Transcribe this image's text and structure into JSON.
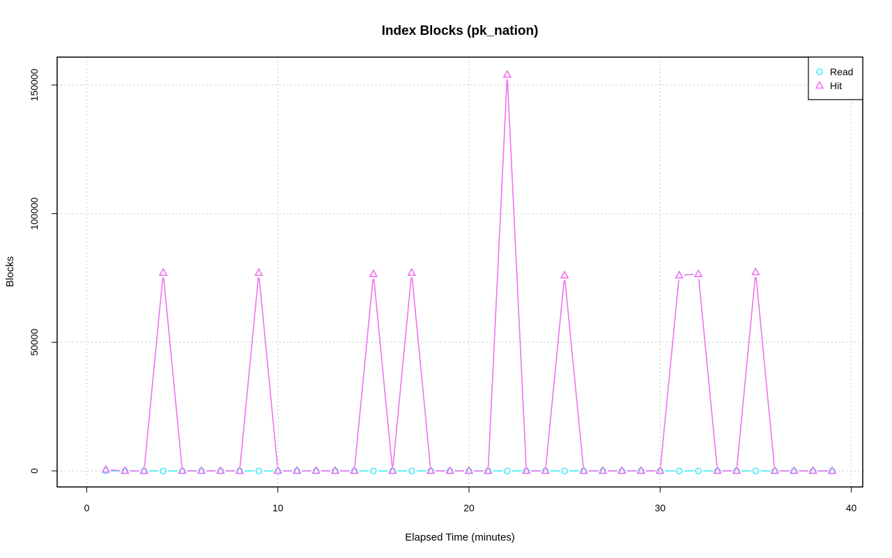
{
  "chart_data": {
    "type": "line",
    "title": "Index Blocks (pk_nation)",
    "xlabel": "Elapsed Time (minutes)",
    "ylabel": "Blocks",
    "xlim": [
      0,
      40
    ],
    "ylim": [
      0,
      155000
    ],
    "x_ticks": [
      0,
      10,
      20,
      30,
      40
    ],
    "y_ticks": [
      0,
      50000,
      100000,
      150000
    ],
    "grid": true,
    "legend_position": "top-right",
    "x": [
      1,
      2,
      3,
      4,
      5,
      6,
      7,
      8,
      9,
      10,
      11,
      12,
      13,
      14,
      15,
      16,
      17,
      18,
      19,
      20,
      21,
      22,
      23,
      24,
      25,
      26,
      27,
      28,
      29,
      30,
      31,
      32,
      33,
      34,
      35,
      36,
      37,
      38,
      39
    ],
    "series": [
      {
        "name": "Read",
        "color": "#40f0f0",
        "marker": "circle",
        "values": [
          0,
          0,
          0,
          0,
          0,
          0,
          0,
          0,
          0,
          0,
          0,
          0,
          0,
          0,
          0,
          0,
          0,
          0,
          0,
          0,
          0,
          0,
          0,
          0,
          0,
          0,
          0,
          0,
          0,
          0,
          0,
          0,
          0,
          0,
          0,
          0,
          0,
          0,
          0
        ]
      },
      {
        "name": "Hit",
        "color": "#f070f0",
        "marker": "triangle",
        "values": [
          500,
          0,
          0,
          77000,
          0,
          0,
          0,
          0,
          77000,
          0,
          0,
          0,
          0,
          0,
          76500,
          0,
          77000,
          0,
          0,
          0,
          0,
          154000,
          0,
          0,
          76000,
          0,
          0,
          0,
          0,
          0,
          76000,
          76500,
          0,
          0,
          77200,
          0,
          0,
          0,
          0
        ]
      }
    ]
  }
}
